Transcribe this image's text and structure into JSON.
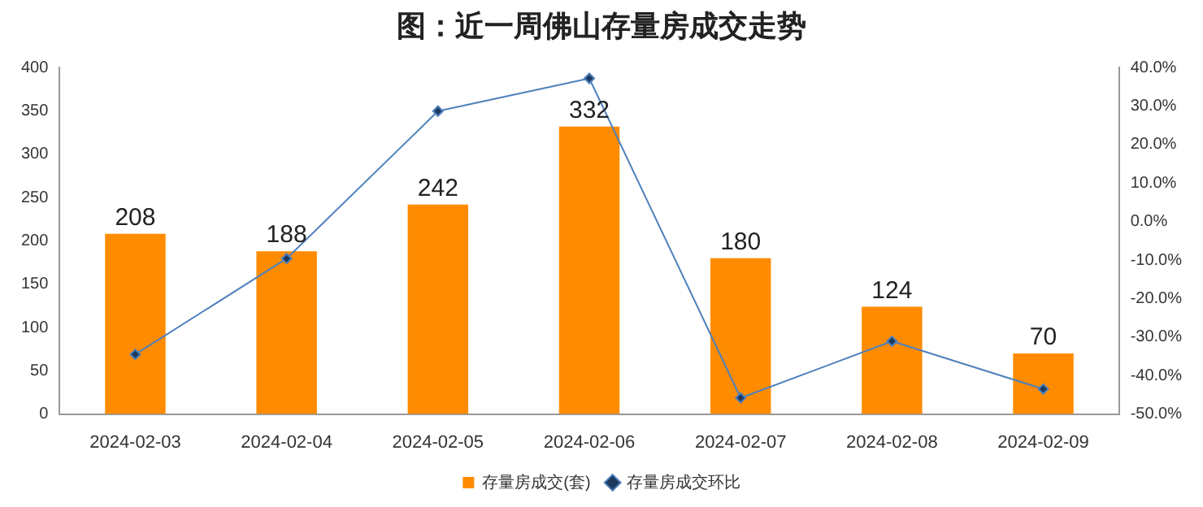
{
  "chart_data": {
    "type": "bar",
    "title": "图：近一周佛山存量房成交走势",
    "categories": [
      "2024-02-03",
      "2024-02-04",
      "2024-02-05",
      "2024-02-06",
      "2024-02-07",
      "2024-02-08",
      "2024-02-09"
    ],
    "series": [
      {
        "name": "存量房成交(套)",
        "color": "#ff8c00",
        "values": [
          208,
          188,
          242,
          332,
          180,
          124,
          70
        ],
        "value_labels": [
          "208",
          "188",
          "242",
          "332",
          "180",
          "124",
          "70"
        ]
      },
      {
        "name": "存量房成交环比",
        "type": "line",
        "axis": "y2",
        "color": "#4f81bd",
        "marker": "diamond",
        "values": [
          -34.5,
          -9.6,
          28.7,
          37.2,
          -45.8,
          -31.1,
          -43.5
        ]
      }
    ],
    "ylim": [
      0,
      400
    ],
    "yticks": [
      0,
      50,
      100,
      150,
      200,
      250,
      300,
      350,
      400
    ],
    "y2lim": [
      -50,
      40
    ],
    "y2ticks": [
      {
        "value": -50,
        "label": "-50.0%"
      },
      {
        "value": -40,
        "label": "-40.0%"
      },
      {
        "value": -30,
        "label": "-30.0%"
      },
      {
        "value": -20,
        "label": "-20.0%"
      },
      {
        "value": -10,
        "label": "-10.0%"
      },
      {
        "value": 0,
        "label": "0.0%"
      },
      {
        "value": 10,
        "label": "10.0%"
      },
      {
        "value": 20,
        "label": "20.0%"
      },
      {
        "value": 30,
        "label": "30.0%"
      },
      {
        "value": 40,
        "label": "40.0%"
      }
    ],
    "grid": false,
    "legend": "bottom"
  }
}
